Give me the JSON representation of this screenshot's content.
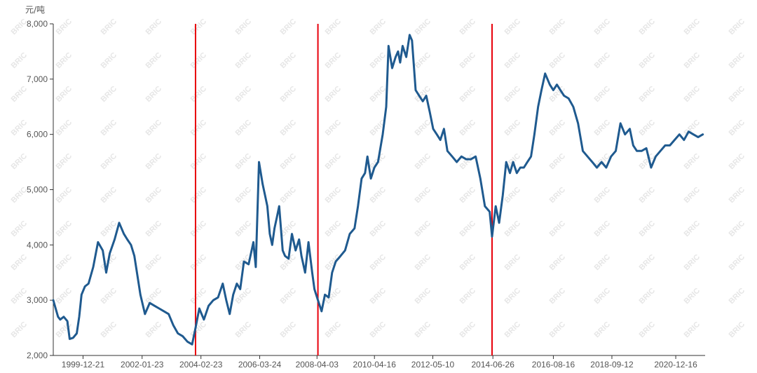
{
  "chart_data": {
    "type": "line",
    "unit_label": "元/吨",
    "ylim": [
      2000,
      8000
    ],
    "y_ticks": [
      "2,000",
      "3,000",
      "4,000",
      "5,000",
      "6,000",
      "7,000",
      "8,000"
    ],
    "y_tick_values": [
      2000,
      3000,
      4000,
      5000,
      6000,
      7000,
      8000
    ],
    "x_range": [
      "1998-12-01",
      "2021-12-31"
    ],
    "x_ticks": [
      "1999-12-21",
      "2002-01-23",
      "2004-02-23",
      "2006-03-24",
      "2008-04-03",
      "2010-04-16",
      "2012-05-10",
      "2014-06-26",
      "2016-08-16",
      "2018-09-12",
      "2020-12-16"
    ],
    "vertical_markers": [
      "2003-12-15",
      "2008-04-15",
      "2014-06-15"
    ],
    "grid": false,
    "legend": "none",
    "watermark_text": "BRIC",
    "colors": {
      "line": "#1f5a8f",
      "marker": "#e8000b"
    },
    "series": [
      {
        "x": [
          "1998-12-01",
          "1999-02-01",
          "1999-03-01",
          "1999-04-15",
          "1999-06-01",
          "1999-07-01",
          "1999-08-15",
          "1999-10-01",
          "1999-11-01",
          "1999-12-01",
          "2000-01-15",
          "2000-03-01",
          "2000-05-01",
          "2000-07-01",
          "2000-09-01",
          "2000-10-15",
          "2000-12-01",
          "2001-02-01",
          "2001-04-01",
          "2001-06-01",
          "2001-07-15",
          "2001-09-01",
          "2001-10-15",
          "2002-01-01",
          "2002-03-01",
          "2002-05-01",
          "2002-07-01",
          "2002-09-01",
          "2002-11-01",
          "2003-01-01",
          "2003-03-01",
          "2003-05-01",
          "2003-07-01",
          "2003-09-01",
          "2003-11-01",
          "2003-12-15",
          "2004-02-01",
          "2004-04-01",
          "2004-06-01",
          "2004-08-01",
          "2004-10-01",
          "2004-12-01",
          "2005-01-15",
          "2005-03-01",
          "2005-04-15",
          "2005-06-01",
          "2005-07-15",
          "2005-09-01",
          "2005-11-01",
          "2006-01-01",
          "2006-02-01",
          "2006-03-15",
          "2006-05-01",
          "2006-06-01",
          "2006-07-01",
          "2006-08-01",
          "2006-09-01",
          "2006-10-01",
          "2006-11-01",
          "2006-12-01",
          "2007-01-15",
          "2007-02-15",
          "2007-04-01",
          "2007-05-15",
          "2007-07-01",
          "2007-08-15",
          "2007-09-15",
          "2007-11-01",
          "2007-12-15",
          "2008-02-01",
          "2008-03-01",
          "2008-04-15",
          "2008-06-01",
          "2008-07-15",
          "2008-09-01",
          "2008-10-15",
          "2008-12-01",
          "2009-02-01",
          "2009-04-01",
          "2009-06-01",
          "2009-08-01",
          "2009-09-15",
          "2009-11-01",
          "2009-12-15",
          "2010-01-15",
          "2010-03-01",
          "2010-04-15",
          "2010-06-01",
          "2010-08-01",
          "2010-09-15",
          "2010-10-15",
          "2010-12-01",
          "2011-01-15",
          "2011-02-15",
          "2011-03-15",
          "2011-04-15",
          "2011-06-01",
          "2011-07-15",
          "2011-08-15",
          "2011-10-01",
          "2011-11-15",
          "2012-01-01",
          "2012-02-15",
          "2012-04-01",
          "2012-05-15",
          "2012-07-01",
          "2012-08-15",
          "2012-10-01",
          "2012-11-15",
          "2013-01-15",
          "2013-03-15",
          "2013-05-15",
          "2013-07-15",
          "2013-09-15",
          "2013-11-15",
          "2014-01-15",
          "2014-03-15",
          "2014-05-15",
          "2014-06-15",
          "2014-08-01",
          "2014-09-15",
          "2014-11-01",
          "2014-12-15",
          "2015-02-01",
          "2015-03-15",
          "2015-05-01",
          "2015-06-15",
          "2015-08-01",
          "2015-09-15",
          "2015-11-01",
          "2015-12-15",
          "2016-02-01",
          "2016-03-15",
          "2016-05-01",
          "2016-07-01",
          "2016-08-15",
          "2016-10-01",
          "2016-11-15",
          "2017-01-01",
          "2017-03-01",
          "2017-05-01",
          "2017-07-01",
          "2017-09-01",
          "2017-11-01",
          "2018-01-01",
          "2018-03-01",
          "2018-05-01",
          "2018-07-01",
          "2018-09-01",
          "2018-11-01",
          "2019-01-01",
          "2019-03-01",
          "2019-05-01",
          "2019-06-15",
          "2019-08-01",
          "2019-10-01",
          "2019-12-01",
          "2020-02-01",
          "2020-04-01",
          "2020-06-01",
          "2020-08-01",
          "2020-10-01",
          "2020-12-01",
          "2021-02-01",
          "2021-04-01",
          "2021-06-01",
          "2021-08-01",
          "2021-10-01",
          "2021-12-01"
        ],
        "y": [
          3000,
          2700,
          2650,
          2700,
          2620,
          2300,
          2320,
          2400,
          2700,
          3100,
          3250,
          3300,
          3600,
          4050,
          3900,
          3500,
          3850,
          4100,
          4400,
          4200,
          4100,
          4000,
          3800,
          3100,
          2750,
          2950,
          2900,
          2850,
          2800,
          2750,
          2550,
          2400,
          2350,
          2250,
          2200,
          2500,
          2850,
          2650,
          2900,
          3000,
          3050,
          3300,
          3000,
          2750,
          3100,
          3300,
          3200,
          3700,
          3650,
          4050,
          3600,
          5500,
          5100,
          4900,
          4700,
          4200,
          4000,
          4300,
          4500,
          4700,
          3900,
          3800,
          3750,
          4200,
          3900,
          4100,
          3800,
          3500,
          4050,
          3500,
          3200,
          3000,
          2800,
          3100,
          3050,
          3500,
          3700,
          3800,
          3900,
          4200,
          4300,
          4700,
          5200,
          5300,
          5600,
          5200,
          5400,
          5500,
          6000,
          6500,
          7600,
          7200,
          7400,
          7500,
          7300,
          7600,
          7400,
          7800,
          7700,
          6800,
          6700,
          6600,
          6700,
          6400,
          6100,
          6000,
          5900,
          6100,
          5700,
          5600,
          5500,
          5600,
          5550,
          5550,
          5600,
          5200,
          4700,
          4600,
          4150,
          4700,
          4400,
          4900,
          5500,
          5300,
          5500,
          5300,
          5400,
          5400,
          5500,
          5600,
          6000,
          6500,
          6800,
          7100,
          6900,
          6800,
          6900,
          6800,
          6700,
          6650,
          6500,
          6200,
          5700,
          5600,
          5500,
          5400,
          5500,
          5400,
          5600,
          5700,
          6200,
          6000,
          6100,
          5800,
          5700,
          5700,
          5750,
          5400,
          5600,
          5700,
          5800,
          5800,
          5900,
          6000,
          5900,
          6050,
          6000,
          5950,
          6000
        ]
      }
    ]
  }
}
